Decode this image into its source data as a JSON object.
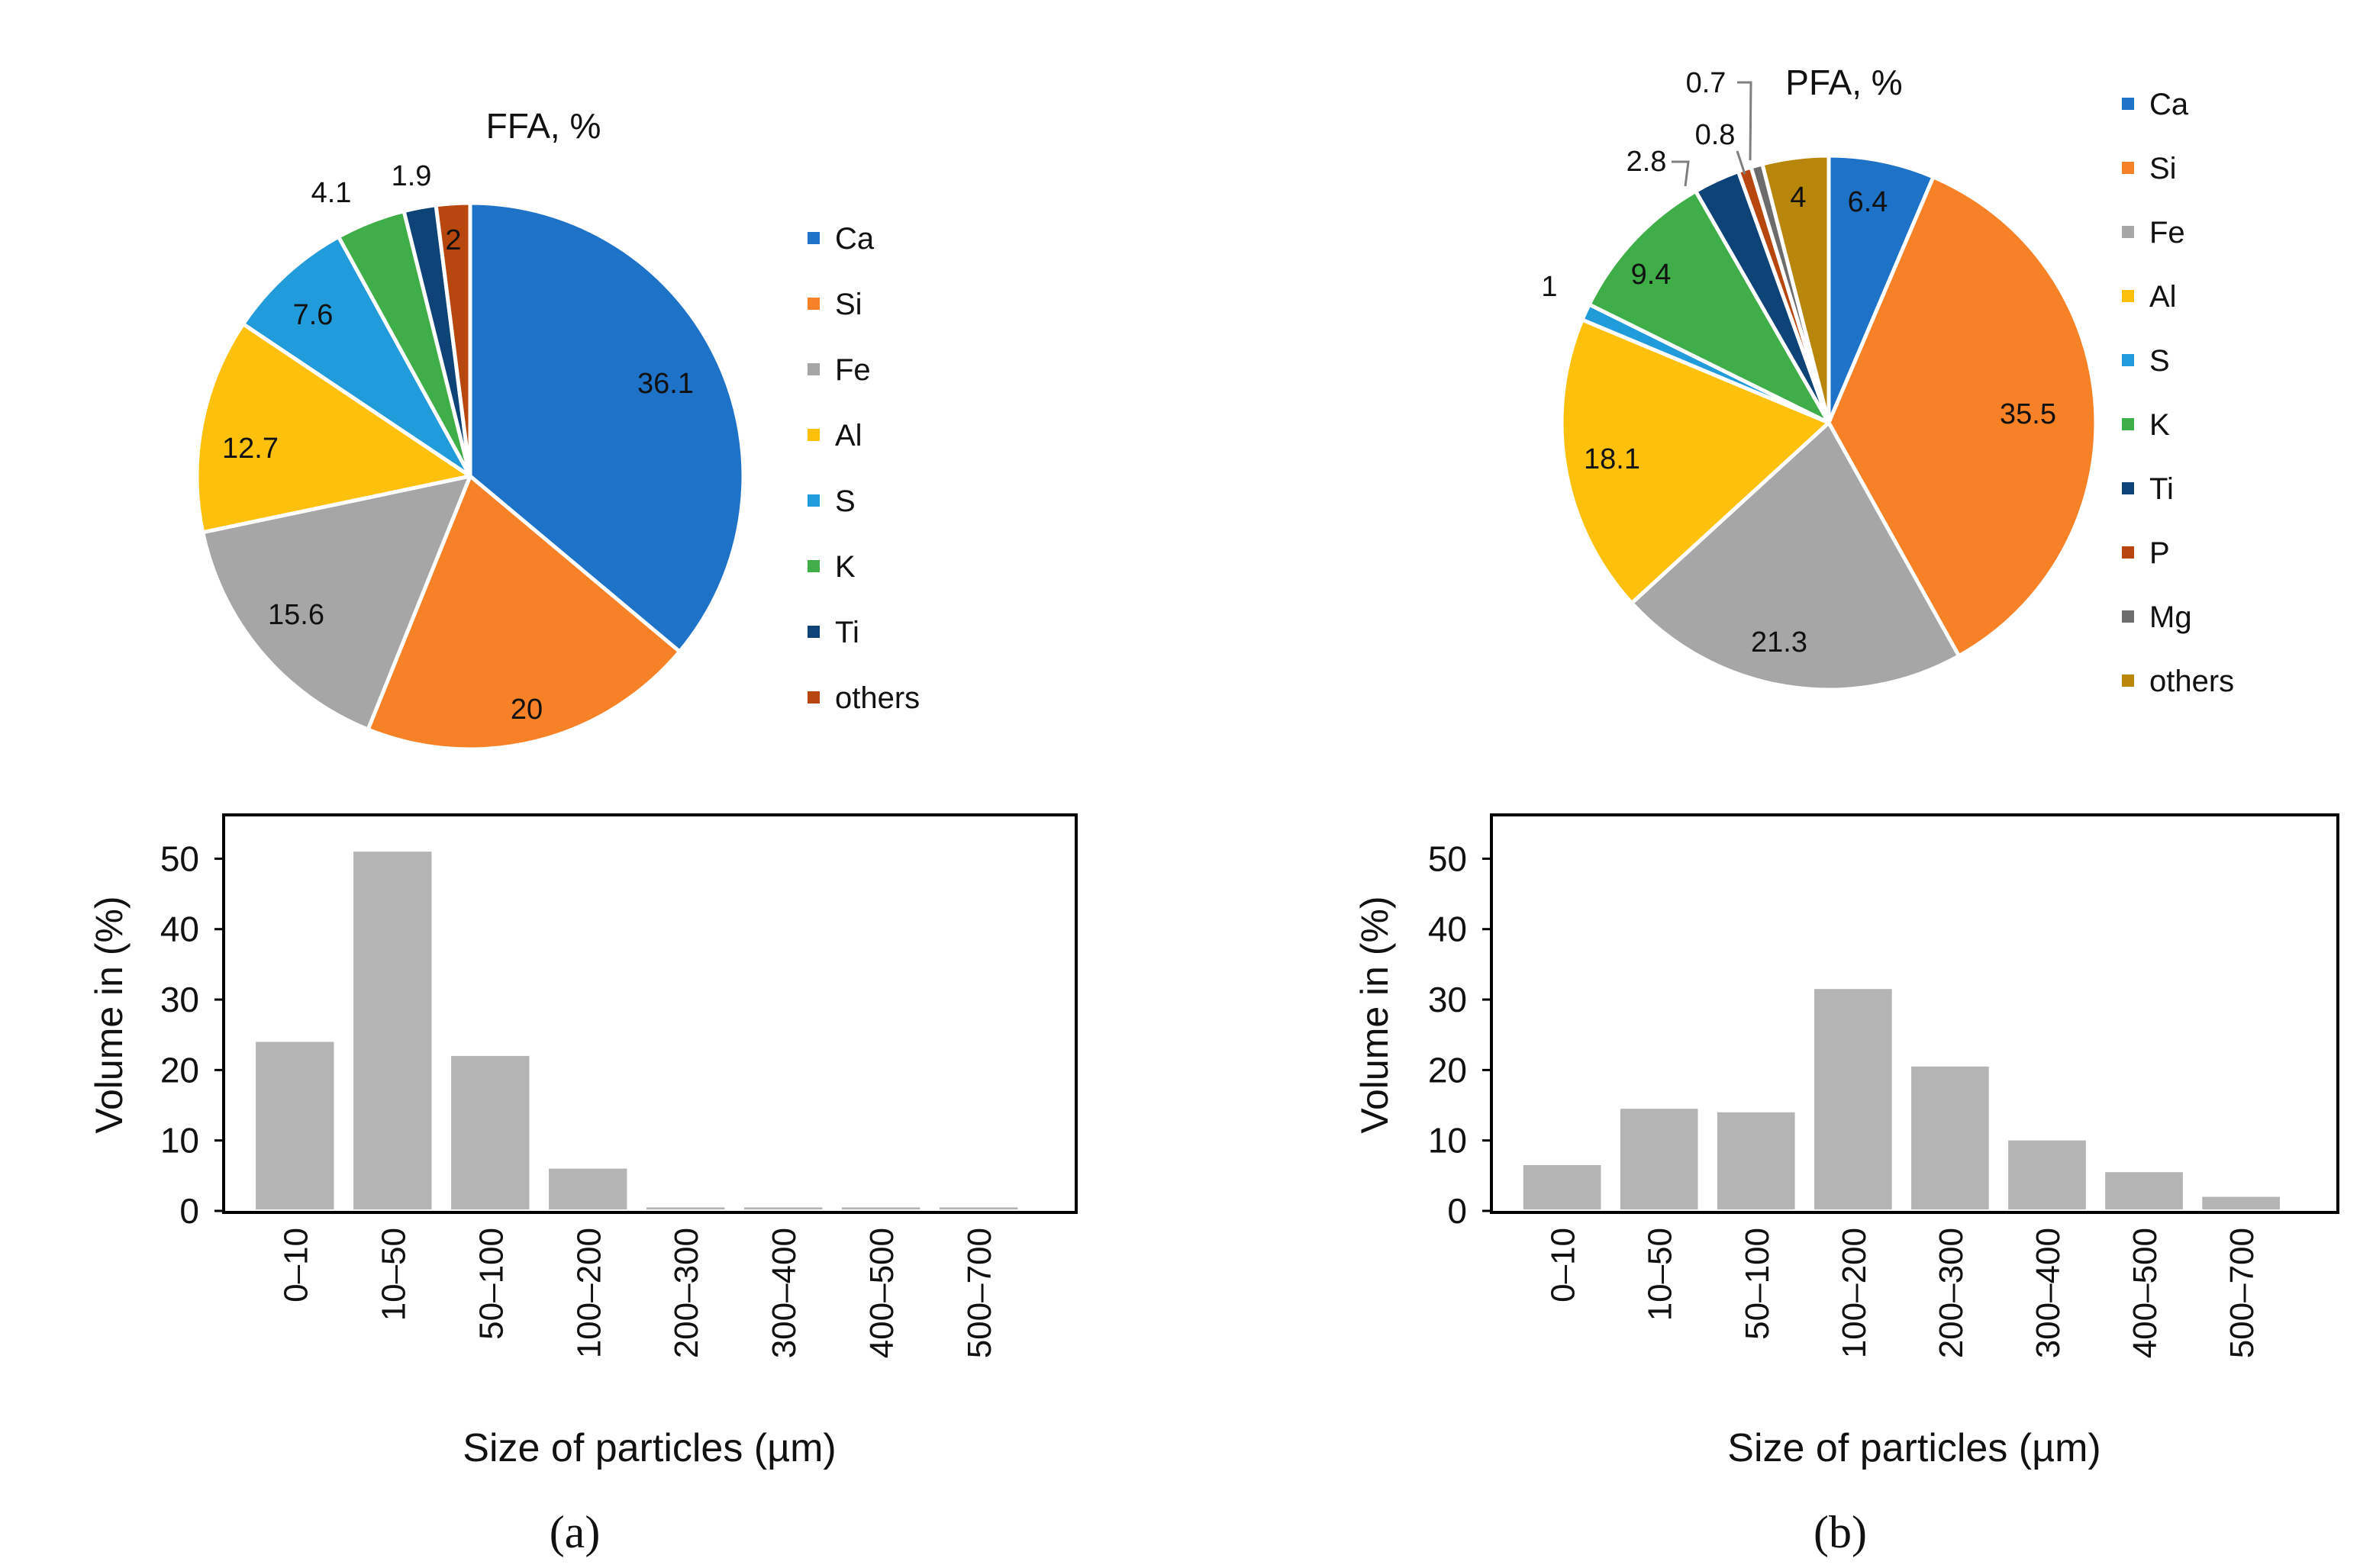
{
  "chart_data": [
    {
      "type": "pie",
      "title": "FFA, %",
      "start": "top, clockwise",
      "slices": [
        {
          "label": "Ca",
          "value": 36.1,
          "color": "#1e73c8"
        },
        {
          "label": "Si",
          "value": 20,
          "color": "#f78126"
        },
        {
          "label": "Fe",
          "value": 15.6,
          "color": "#a6a6a6"
        },
        {
          "label": "Al",
          "value": 12.7,
          "color": "#fdc10d"
        },
        {
          "label": "S",
          "value": 7.6,
          "color": "#219bd9"
        },
        {
          "label": "K",
          "value": 4.1,
          "color": "#3fae49"
        },
        {
          "label": "Ti",
          "value": 1.9,
          "color": "#0e4377"
        },
        {
          "label": "others",
          "value": 2,
          "color": "#b8470f"
        }
      ],
      "data_labels": [
        "36.1",
        "20",
        "15.6",
        "12.7",
        "7.6",
        "4.1",
        "1.9",
        "2"
      ],
      "legend": "right"
    },
    {
      "type": "pie",
      "title": "PFA, %",
      "start": "top, clockwise",
      "slices": [
        {
          "label": "Ca",
          "value": 6.4,
          "color": "#1e73c8"
        },
        {
          "label": "Si",
          "value": 35.5,
          "color": "#f78126"
        },
        {
          "label": "Fe",
          "value": 21.3,
          "color": "#a6a6a6"
        },
        {
          "label": "Al",
          "value": 18.1,
          "color": "#fdc10d"
        },
        {
          "label": "S",
          "value": 1,
          "color": "#219bd9"
        },
        {
          "label": "K",
          "value": 9.4,
          "color": "#3fae49"
        },
        {
          "label": "Ti",
          "value": 2.8,
          "color": "#0e4377"
        },
        {
          "label": "P",
          "value": 0.8,
          "color": "#b8470f"
        },
        {
          "label": "Mg",
          "value": 0.7,
          "color": "#6c6c6c"
        },
        {
          "label": "others",
          "value": 4,
          "color": "#b8860b"
        }
      ],
      "data_labels": [
        "6.4",
        "35.5",
        "21.3",
        "18.1",
        "1",
        "9.4",
        "2.8",
        "0.8",
        "0.7",
        "4"
      ],
      "legend": "right"
    },
    {
      "type": "bar",
      "panel": "(a)",
      "categories": [
        "0–10",
        "10–50",
        "50–100",
        "100–200",
        "200–300",
        "300–400",
        "400–500",
        "500–700"
      ],
      "values": [
        24,
        51,
        22,
        6,
        0.5,
        0.5,
        0.5,
        0.5
      ],
      "xlabel": "Size of particles (µm)",
      "ylabel": "Volume in (%)",
      "yticks": [
        "0",
        "10",
        "20",
        "30",
        "40",
        "50"
      ],
      "ylim": [
        0,
        56
      ],
      "bar_color": "#b4b4b4",
      "grid": false
    },
    {
      "type": "bar",
      "panel": "(b)",
      "categories": [
        "0–10",
        "10–50",
        "50–100",
        "100–200",
        "200–300",
        "300–400",
        "400–500",
        "500–700"
      ],
      "values": [
        6.5,
        14.5,
        14,
        31.5,
        20.5,
        10,
        5.5,
        2
      ],
      "xlabel": "Size of particles (µm)",
      "ylabel": "Volume in (%)",
      "yticks": [
        "0",
        "10",
        "20",
        "30",
        "40",
        "50"
      ],
      "ylim": [
        0,
        56
      ],
      "bar_color": "#b4b4b4",
      "grid": false
    }
  ],
  "panels": {
    "a_label": "(a)",
    "b_label": "(b)"
  }
}
